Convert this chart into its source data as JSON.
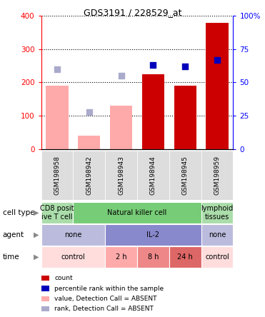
{
  "title": "GDS3191 / 228529_at",
  "samples": [
    "GSM198958",
    "GSM198942",
    "GSM198943",
    "GSM198944",
    "GSM198945",
    "GSM198959"
  ],
  "bar_values": [
    190,
    40,
    130,
    225,
    190,
    380
  ],
  "bar_absent": [
    true,
    true,
    true,
    false,
    false,
    false
  ],
  "percentile_values": [
    60,
    27.5,
    55,
    63,
    62,
    67
  ],
  "percentile_absent": [
    true,
    true,
    true,
    false,
    false,
    false
  ],
  "ylim_left": [
    0,
    400
  ],
  "ylim_right": [
    0,
    100
  ],
  "yticks_left": [
    0,
    100,
    200,
    300,
    400
  ],
  "yticks_right": [
    0,
    25,
    50,
    75,
    100
  ],
  "color_bar_present": "#cc0000",
  "color_bar_absent": "#ffaaaa",
  "color_dot_present": "#0000bb",
  "color_dot_absent": "#aaaacc",
  "cell_types": [
    {
      "label": "CD8 posit\nive T cell",
      "cols": [
        0
      ],
      "color": "#aaddaa"
    },
    {
      "label": "Natural killer cell",
      "cols": [
        1,
        2,
        3,
        4
      ],
      "color": "#77cc77"
    },
    {
      "label": "lymphoid\ntissues",
      "cols": [
        5
      ],
      "color": "#aaddaa"
    }
  ],
  "agents": [
    {
      "label": "none",
      "cols": [
        0,
        1
      ],
      "color": "#bbbbdd"
    },
    {
      "label": "IL-2",
      "cols": [
        2,
        3,
        4
      ],
      "color": "#8888cc"
    },
    {
      "label": "none",
      "cols": [
        5
      ],
      "color": "#bbbbdd"
    }
  ],
  "times": [
    {
      "label": "control",
      "cols": [
        0,
        1
      ],
      "color": "#ffdddd"
    },
    {
      "label": "2 h",
      "cols": [
        2
      ],
      "color": "#ffaaaa"
    },
    {
      "label": "8 h",
      "cols": [
        3
      ],
      "color": "#ee8888"
    },
    {
      "label": "24 h",
      "cols": [
        4
      ],
      "color": "#dd6666"
    },
    {
      "label": "control",
      "cols": [
        5
      ],
      "color": "#ffdddd"
    }
  ],
  "row_labels": [
    "cell type",
    "agent",
    "time"
  ],
  "legend_items": [
    {
      "label": "count",
      "color": "#cc0000"
    },
    {
      "label": "percentile rank within the sample",
      "color": "#0000bb"
    },
    {
      "label": "value, Detection Call = ABSENT",
      "color": "#ffaaaa"
    },
    {
      "label": "rank, Detection Call = ABSENT",
      "color": "#aaaacc"
    }
  ]
}
